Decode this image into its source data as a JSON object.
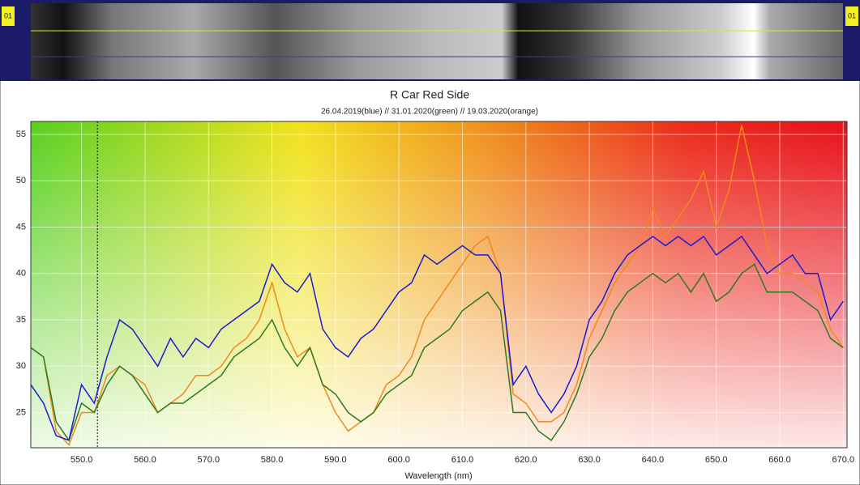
{
  "strip": {
    "left_label": "01",
    "right_label": "01"
  },
  "chart_data": {
    "type": "line",
    "title": "R Car Red Side",
    "subtitle": "26.04.2019(blue) // 31.01.2020(green) // 19.03.2020(orange)",
    "x_label": "Wavelength (nm)",
    "x": [
      542,
      544,
      546,
      548,
      550,
      552,
      554,
      556,
      558,
      560,
      562,
      564,
      566,
      568,
      570,
      572,
      574,
      576,
      578,
      580,
      582,
      584,
      586,
      588,
      590,
      592,
      594,
      596,
      598,
      600,
      602,
      604,
      606,
      608,
      610,
      612,
      614,
      616,
      618,
      620,
      622,
      624,
      626,
      628,
      630,
      632,
      634,
      636,
      638,
      640,
      642,
      644,
      646,
      648,
      650,
      652,
      654,
      656,
      658,
      660,
      662,
      664,
      666,
      668,
      670
    ],
    "series": [
      {
        "color": "#1c1cd0",
        "values": [
          28,
          26,
          22.5,
          22,
          28,
          26,
          31,
          35,
          34,
          32,
          30,
          33,
          31,
          33,
          32,
          34,
          35,
          36,
          37,
          41,
          39,
          38,
          40,
          34,
          32,
          31,
          33,
          34,
          36,
          38,
          39,
          42,
          41,
          42,
          43,
          42,
          42,
          40,
          28,
          30,
          27,
          25,
          27,
          30,
          35,
          37,
          40,
          42,
          43,
          44,
          43,
          44,
          43,
          44,
          42,
          43,
          44,
          42,
          40,
          41,
          42,
          40,
          40,
          35,
          37
        ]
      },
      {
        "color": "#2f7a1f",
        "values": [
          32,
          31,
          24,
          22,
          26,
          25,
          28,
          30,
          29,
          27,
          25,
          26,
          26,
          27,
          28,
          29,
          31,
          32,
          33,
          35,
          32,
          30,
          32,
          28,
          27,
          25,
          24,
          25,
          27,
          28,
          29,
          32,
          33,
          34,
          36,
          37,
          38,
          36,
          25,
          25,
          23,
          22,
          24,
          27,
          31,
          33,
          36,
          38,
          39,
          40,
          39,
          40,
          38,
          40,
          37,
          38,
          40,
          41,
          38,
          38,
          38,
          37,
          36,
          33,
          32
        ]
      },
      {
        "color": "#f08a1c",
        "values": [
          32,
          31,
          23,
          21.5,
          25,
          25,
          29,
          30,
          29,
          28,
          25,
          26,
          27,
          29,
          29,
          30,
          32,
          33,
          35,
          39,
          34,
          31,
          32,
          28,
          25,
          23,
          24,
          25,
          28,
          29,
          31,
          35,
          37,
          39,
          41,
          43,
          44,
          40,
          27,
          26,
          24,
          24,
          25,
          28,
          33,
          36,
          39,
          41,
          43,
          47,
          44,
          46,
          48,
          51,
          45,
          49,
          56,
          50,
          43,
          40,
          40,
          39,
          38,
          34,
          32
        ]
      }
    ],
    "xlim": [
      542,
      670.6
    ],
    "ylim": [
      21.2,
      56.4
    ],
    "xticks": [
      {
        "value": 550,
        "label": "550.0"
      },
      {
        "value": 560,
        "label": "560.0"
      },
      {
        "value": 570,
        "label": "570.0"
      },
      {
        "value": 580,
        "label": "580.0"
      },
      {
        "value": 590,
        "label": "590.0"
      },
      {
        "value": 600,
        "label": "600.0"
      },
      {
        "value": 610,
        "label": "610.0"
      },
      {
        "value": 620,
        "label": "620.0"
      },
      {
        "value": 630,
        "label": "630.0"
      },
      {
        "value": 640,
        "label": "640.0"
      },
      {
        "value": 650,
        "label": "650.0"
      },
      {
        "value": 660,
        "label": "660.0"
      },
      {
        "value": 670,
        "label": "670.0"
      }
    ],
    "yticks": [
      25,
      30,
      35,
      40,
      45,
      50,
      55
    ],
    "grid": true,
    "cursor_x": 552.5
  }
}
